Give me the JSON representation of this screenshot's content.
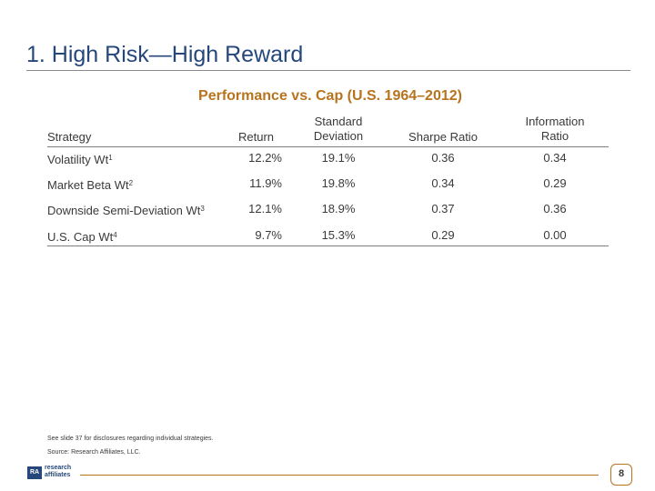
{
  "slide": {
    "title": "1. High Risk—High Reward",
    "page_number": "8"
  },
  "table": {
    "title": "Performance vs. Cap (U.S. 1964–2012)",
    "headers": {
      "strategy": "Strategy",
      "return": "Return",
      "std_dev_line1": "Standard",
      "std_dev_line2": "Deviation",
      "sharpe": "Sharpe Ratio",
      "info_line1": "Information",
      "info_line2": "Ratio"
    },
    "rows": [
      {
        "name": "Volatility Wt",
        "sup": "1",
        "return": "12.2%",
        "std_dev": "19.1%",
        "sharpe": "0.36",
        "info": "0.34"
      },
      {
        "name": "Market Beta Wt",
        "sup": "2",
        "return": "11.9%",
        "std_dev": "19.8%",
        "sharpe": "0.34",
        "info": "0.29"
      },
      {
        "name": "Downside Semi-Deviation Wt",
        "sup": "3",
        "return": "12.1%",
        "std_dev": "18.9%",
        "sharpe": "0.37",
        "info": "0.36"
      },
      {
        "name": "U.S. Cap Wt",
        "sup": "4",
        "return": "9.7%",
        "std_dev": "15.3%",
        "sharpe": "0.29",
        "info": "0.00"
      }
    ]
  },
  "footnotes": {
    "disclosure": "See slide 37 for disclosures regarding individual strategies.",
    "source": "Source: Research Affiliates, LLC."
  },
  "logo": {
    "mark": "RA",
    "line1": "research",
    "line2": "affiliates"
  },
  "colors": {
    "title": "#25477c",
    "accent": "#b8731f",
    "text": "#3a3a3a"
  }
}
